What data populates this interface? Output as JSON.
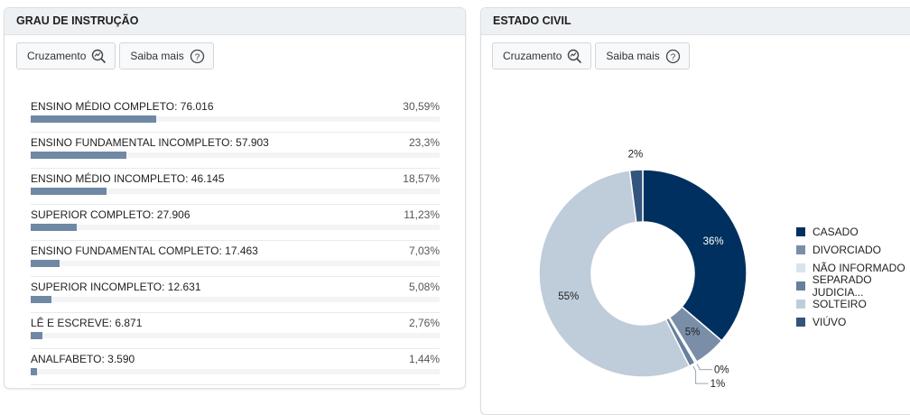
{
  "left_panel": {
    "title": "GRAU DE INSTRUÇÃO",
    "buttons": {
      "cross_label": "Cruzamento",
      "info_label": "Saiba mais"
    },
    "bar_color": "#6f88a4",
    "rows": [
      {
        "label": "ENSINO MÉDIO COMPLETO: 76.016",
        "pct": "30,59%",
        "value": 30.59
      },
      {
        "label": "ENSINO FUNDAMENTAL INCOMPLETO: 57.903",
        "pct": "23,3%",
        "value": 23.3
      },
      {
        "label": "ENSINO MÉDIO INCOMPLETO: 46.145",
        "pct": "18,57%",
        "value": 18.57
      },
      {
        "label": "SUPERIOR COMPLETO: 27.906",
        "pct": "11,23%",
        "value": 11.23
      },
      {
        "label": "ENSINO FUNDAMENTAL COMPLETO: 17.463",
        "pct": "7,03%",
        "value": 7.03
      },
      {
        "label": "SUPERIOR INCOMPLETO: 12.631",
        "pct": "5,08%",
        "value": 5.08
      },
      {
        "label": "LÊ E ESCREVE: 6.871",
        "pct": "2,76%",
        "value": 2.76
      },
      {
        "label": "ANALFABETO: 3.590",
        "pct": "1,44%",
        "value": 1.44
      }
    ]
  },
  "right_panel": {
    "title": "ESTADO CIVIL",
    "buttons": {
      "cross_label": "Cruzamento",
      "info_label": "Saiba mais"
    }
  },
  "chart_data": {
    "type": "pie",
    "title": "ESTADO CIVIL",
    "donut": true,
    "legend_position": "right",
    "slices": [
      {
        "name": "CASADO",
        "value": 36,
        "label": "36%",
        "color": "#00305f"
      },
      {
        "name": "DIVORCIADO",
        "value": 5,
        "label": "5%",
        "color": "#7a8ea8"
      },
      {
        "name": "NÃO INFORMADO",
        "value": 0.3,
        "label": "0%",
        "color": "#dbe3ec"
      },
      {
        "name": "SEPARADO JUDICIA...",
        "value": 1,
        "label": "1%",
        "color": "#667f9d"
      },
      {
        "name": "SOLTEIRO",
        "value": 55,
        "label": "55%",
        "color": "#bfccda"
      },
      {
        "name": "VIÚVO",
        "value": 2,
        "label": "2%",
        "color": "#33547d"
      }
    ]
  }
}
